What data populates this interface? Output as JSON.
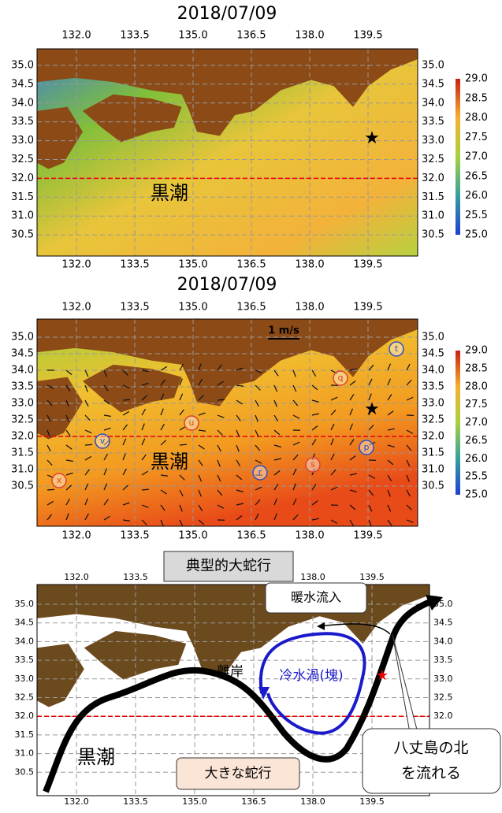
{
  "panels": [
    {
      "title": "2018/07/09",
      "lon_ticks": [
        "132.0",
        "133.5",
        "135.0",
        "136.5",
        "138.0",
        "139.5"
      ],
      "lat_ticks": [
        "35.0",
        "34.5",
        "34.0",
        "33.5",
        "33.0",
        "32.5",
        "32.0",
        "31.5",
        "31.0",
        "30.5"
      ],
      "colorbar_ticks": [
        "29.0",
        "28.5",
        "28.0",
        "27.5",
        "27.0",
        "26.5",
        "26.0",
        "25.5",
        "25.0"
      ],
      "label": "黒潮"
    },
    {
      "title": "2018/07/09",
      "lon_ticks": [
        "132.0",
        "133.5",
        "135.0",
        "136.5",
        "138.0",
        "139.5"
      ],
      "lat_ticks": [
        "35.0",
        "34.5",
        "34.0",
        "33.5",
        "33.0",
        "32.5",
        "32.0",
        "31.5",
        "31.0",
        "30.5"
      ],
      "colorbar_ticks": [
        "29.0",
        "28.5",
        "28.0",
        "27.5",
        "27.0",
        "26.5",
        "26.0",
        "25.5",
        "25.0"
      ],
      "label": "黒潮",
      "scale_label": "1 m/s",
      "eddy_labels": [
        "x",
        "v",
        "u",
        "r",
        "s",
        "q",
        "p",
        "t"
      ]
    },
    {
      "title": "典型的大蛇行",
      "lon_ticks": [
        "132.0",
        "133.5",
        "135.0",
        "136.5",
        "138.0",
        "139.5"
      ],
      "lat_ticks": [
        "35.0",
        "34.5",
        "34.0",
        "33.5",
        "33.0",
        "32.5",
        "32.0",
        "31.5",
        "31.0",
        "30.5"
      ],
      "label": "黒潮",
      "annotations": {
        "warm_inflow": "暖水流入",
        "offshore": "離岸",
        "cold_eddy": "冷水渦(塊)",
        "meander": "大きな蛇行",
        "hachijo": [
          "八丈島の北",
          "を流れる"
        ]
      }
    }
  ]
}
